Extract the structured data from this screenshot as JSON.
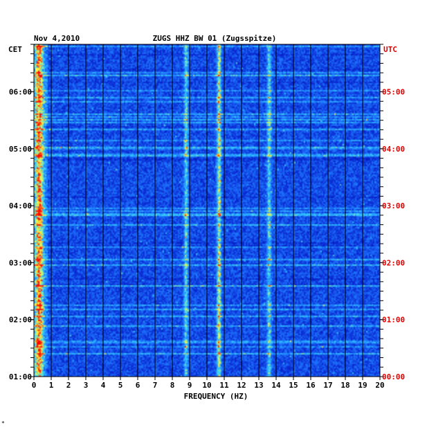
{
  "chart_data": {
    "type": "heatmap",
    "date": "Nov 4,2010",
    "title": "ZUGS HHZ BW 01 (Zugsspitze)",
    "xlabel": "FREQUENCY (HZ)",
    "xlim": [
      0,
      20
    ],
    "x_ticks": [
      "0",
      "1",
      "2",
      "3",
      "4",
      "5",
      "6",
      "7",
      "8",
      "9",
      "10",
      "11",
      "12",
      "13",
      "14",
      "15",
      "16",
      "17",
      "18",
      "19",
      "20"
    ],
    "left_axis_label": "CET",
    "right_axis_label": "UTC",
    "left_ticks": [
      "06:00",
      "05:00",
      "04:00",
      "03:00",
      "02:00",
      "01:00"
    ],
    "right_ticks": [
      "05:00",
      "04:00",
      "03:00",
      "02:00",
      "01:00",
      "00:00"
    ],
    "time_range_cet": [
      "01:00",
      "06:50"
    ],
    "colors": {
      "background": "#0a1fb4",
      "grid": "#000000",
      "left_tick_color": "#000000",
      "right_tick_color": "#e00000",
      "colormap": [
        "#0000a0",
        "#0a28d2",
        "#1e78ff",
        "#32d2ff",
        "#ffff3c",
        "#ff0000"
      ]
    },
    "spectral_lines_hz": [
      0.3,
      8.8,
      10.7,
      13.6
    ],
    "footer_mark": "*"
  }
}
